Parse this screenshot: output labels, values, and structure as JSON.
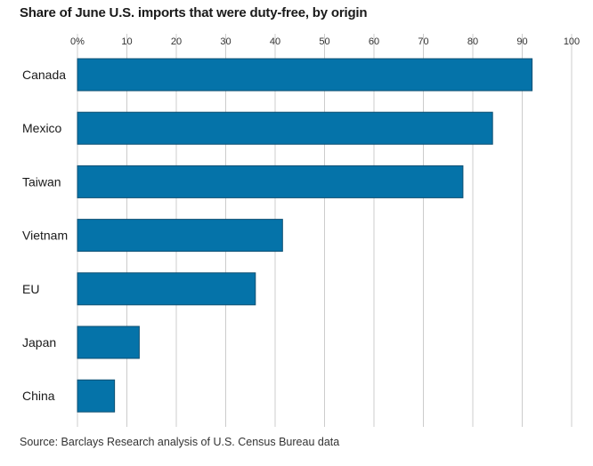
{
  "chart_data": {
    "type": "bar",
    "orientation": "horizontal",
    "title": "Share of June U.S. imports that were duty-free, by origin",
    "categories": [
      "Canada",
      "Mexico",
      "Taiwan",
      "Vietnam",
      "EU",
      "Japan",
      "China"
    ],
    "values": [
      92,
      84,
      78,
      41.5,
      36,
      12.5,
      7.5
    ],
    "xlim": [
      0,
      100
    ],
    "xticks": [
      0,
      10,
      20,
      30,
      40,
      50,
      60,
      70,
      80,
      90,
      100
    ],
    "xtick_labels": [
      "0%",
      "10",
      "20",
      "30",
      "40",
      "50",
      "60",
      "70",
      "80",
      "90",
      "100"
    ],
    "grid": true,
    "source": "Source: Barclays Research analysis of U.S. Census Bureau data",
    "colors": {
      "bar": "#0573a9",
      "bar_edge": "#0e4f72",
      "grid": "#cccccc"
    }
  }
}
